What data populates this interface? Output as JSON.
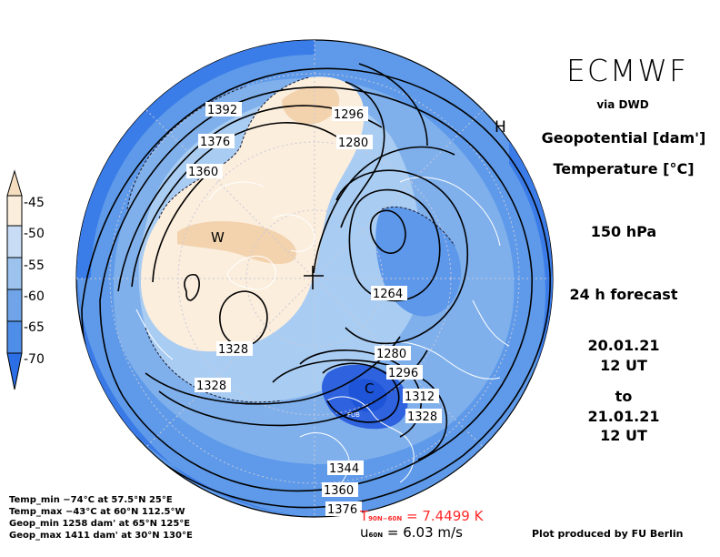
{
  "header": {
    "title": "ECMWF",
    "via": "via DWD",
    "field1": "Geopotential [dam']",
    "field2": "Temperature [°C]",
    "level": "150 hPa",
    "forecast": "24 h forecast",
    "date_start": "20.01.21",
    "time_start": "12 UT",
    "to": "to",
    "date_end": "21.01.21",
    "time_end": "12 UT"
  },
  "colorbar": {
    "ticks": [
      "-45",
      "-50",
      "-55",
      "-60",
      "-65",
      "-70"
    ],
    "colors": [
      "#f5ddc0",
      "#fbeedd",
      "#c8ddf5",
      "#9cc3ee",
      "#6fa4e8",
      "#4f8ee8",
      "#2b6ee6"
    ]
  },
  "stats": {
    "temp_min": "Temp_min −74°C at 57.5°N 25°E",
    "temp_max": "Temp_max −43°C at 60°N 112.5°W",
    "geop_min": "Geop_min 1258 dam' at 65°N 125°E",
    "geop_max": "Geop_max 1411 dam' at 30°N 130°E"
  },
  "means": {
    "t_symbol": "T",
    "t_sub": "90N−60N",
    "t_value": "= 7.4499 K",
    "u_symbol": "u",
    "u_sub": "60N",
    "u_value": "= 6.03 m/s"
  },
  "credit": "Plot produced by FU Berlin",
  "map_labels": {
    "contours": [
      "1392",
      "1376",
      "1360",
      "1296",
      "1280",
      "1264",
      "1328",
      "1328",
      "1280",
      "1296",
      "1312",
      "1328",
      "1344",
      "1360",
      "1376"
    ],
    "markers": [
      "H",
      "W",
      "C",
      "FUB"
    ]
  },
  "colors": {
    "warm_core": "#f3d6b5",
    "warm_light": "#fbeedd",
    "cold_deep": "#2f6fe4",
    "contour": "#000000",
    "coast": "#ffffff",
    "tmean_color": "#ff2a2a"
  }
}
